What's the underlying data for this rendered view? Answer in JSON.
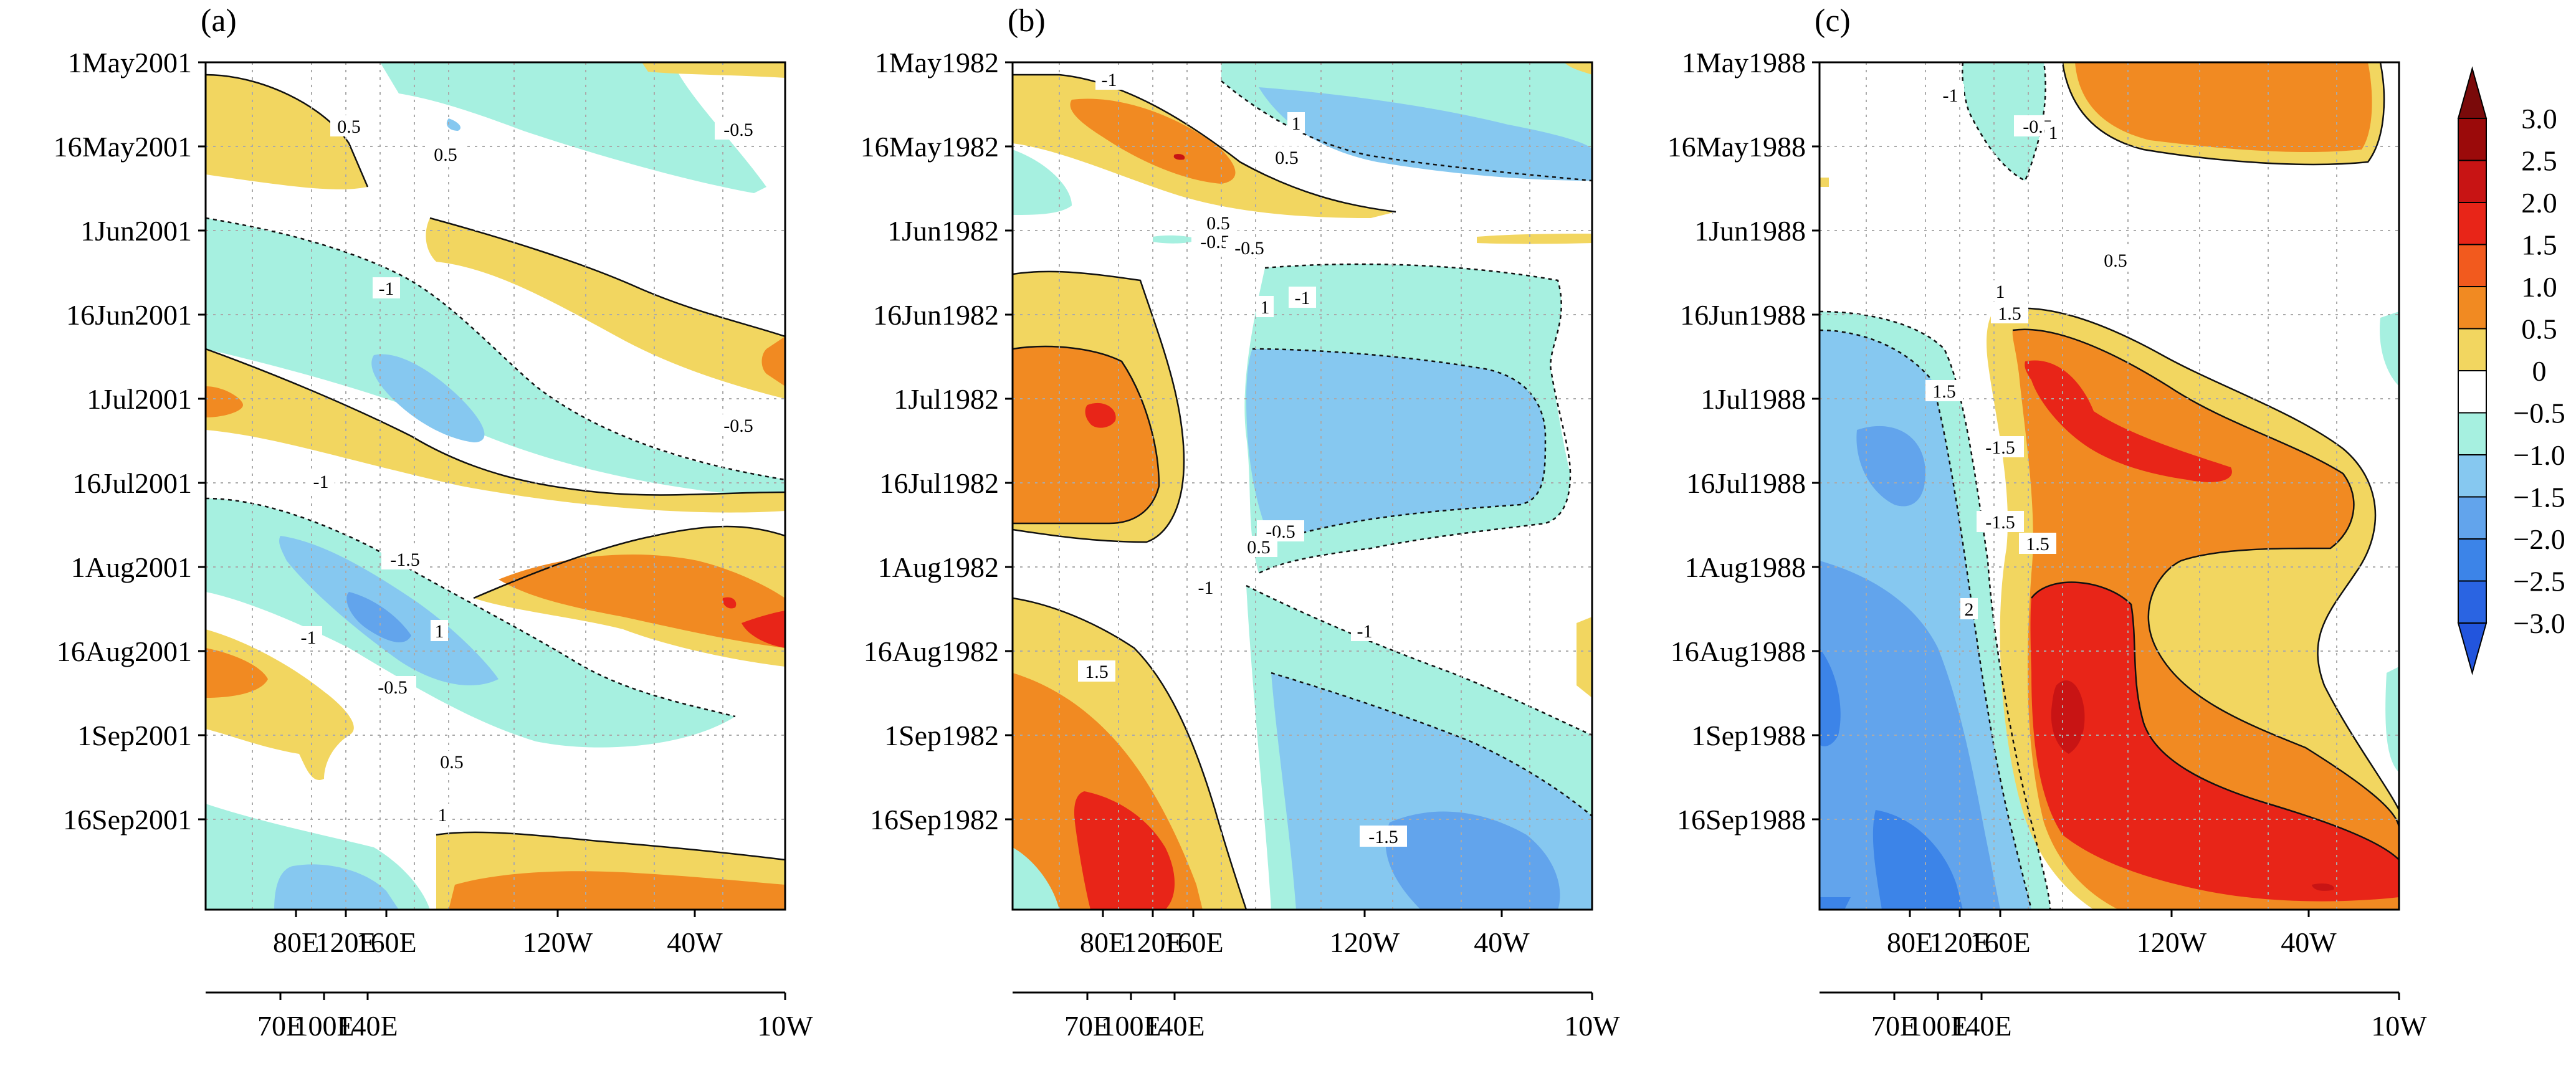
{
  "chart_data": [
    {
      "type": "heatmap",
      "panel_label": "(a)",
      "y_tick_labels": [
        "1May2001",
        "16May2001",
        "1Jun2001",
        "16Jun2001",
        "1Jul2001",
        "16Jul2001",
        "1Aug2001",
        "16Aug2001",
        "1Sep2001",
        "16Sep2001"
      ],
      "x_tick_labels": [
        "80E",
        "120E",
        "160E",
        "120W",
        "40W"
      ],
      "x2_tick_labels": [
        "70E",
        "100E",
        "140E",
        "10W"
      ],
      "contour_labels": [
        "0.5",
        "0.5",
        "-0.5",
        "-1",
        "-0.5",
        "-1",
        "1",
        "-1.5",
        "-1",
        "-0.5",
        "0.5",
        "1"
      ],
      "grid": true
    },
    {
      "type": "heatmap",
      "panel_label": "(b)",
      "y_tick_labels": [
        "1May1982",
        "16May1982",
        "1Jun1982",
        "16Jun1982",
        "1Jul1982",
        "16Jul1982",
        "1Aug1982",
        "16Aug1982",
        "1Sep1982",
        "16Sep1982"
      ],
      "x_tick_labels": [
        "80E",
        "120E",
        "160E",
        "120W",
        "40W"
      ],
      "x2_tick_labels": [
        "70E",
        "100E",
        "140E",
        "10W"
      ],
      "contour_labels": [
        "-1",
        "1",
        "0.5",
        "0.5",
        "-0.5",
        "-0.5",
        "1",
        "-1",
        "-1",
        "-0.5",
        "0.5",
        "-1",
        "1.5",
        "-1.5"
      ],
      "grid": true
    },
    {
      "type": "heatmap",
      "panel_label": "(c)",
      "y_tick_labels": [
        "1May1988",
        "16May1988",
        "1Jun1988",
        "16Jun1988",
        "1Jul1988",
        "16Jul1988",
        "1Aug1988",
        "16Aug1988",
        "1Sep1988",
        "16Sep1988"
      ],
      "x_tick_labels": [
        "80E",
        "120E",
        "160E",
        "120W",
        "40W"
      ],
      "x2_tick_labels": [
        "70E",
        "100E",
        "140E",
        "10W"
      ],
      "contour_labels": [
        "-1",
        "-0.5",
        "1",
        "0.5",
        "1",
        "1.5",
        "1.5",
        "-1.5",
        "-1.5",
        "1.5",
        "2"
      ],
      "grid": true
    }
  ],
  "colorbar": {
    "levels": [
      "3.0",
      "2.5",
      "2.0",
      "1.5",
      "1.0",
      "0.5",
      "0",
      "−0.5",
      "−1.0",
      "−1.5",
      "−2.0",
      "−2.5",
      "−3.0"
    ],
    "colors": [
      "#9b0a0a",
      "#c81414",
      "#e82518",
      "#f25a1e",
      "#f18a22",
      "#f2d660",
      "#ffffff",
      "#a6f0e0",
      "#86c8f0",
      "#62a4ec",
      "#3c84e8",
      "#2a64e2"
    ],
    "triangle_top": "#7a0a0a",
    "triangle_bottom": "#2255dd"
  },
  "colors": {
    "c_0_5": "#f2d660",
    "c_1_0": "#f18a22",
    "c_1_5": "#e82518",
    "c_2_0": "#c81414",
    "c_2_5": "#9b0a0a",
    "c_m0_5": "#a6f0e0",
    "c_m1_0": "#86c8f0",
    "c_m1_5": "#62a4ec",
    "c_m2_0": "#3c84e8"
  }
}
